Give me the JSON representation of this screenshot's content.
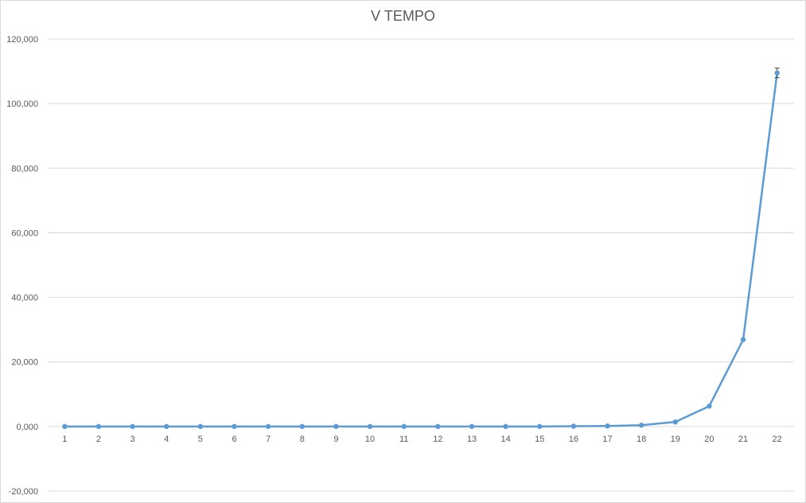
{
  "chart_data": {
    "type": "line",
    "title": "V TEMPO",
    "xlabel": "",
    "ylabel": "",
    "categories": [
      "1",
      "2",
      "3",
      "4",
      "5",
      "6",
      "7",
      "8",
      "9",
      "10",
      "11",
      "12",
      "13",
      "14",
      "15",
      "16",
      "17",
      "18",
      "19",
      "20",
      "21",
      "22"
    ],
    "series": [
      {
        "values": [
          0,
          0,
          0,
          0,
          0,
          0,
          0,
          0,
          0,
          0,
          0,
          0,
          0,
          0,
          0,
          100,
          150,
          400,
          1400,
          6300,
          26900,
          109500
        ],
        "color": "#5b9bd5",
        "error_bar_last": 1500
      }
    ],
    "ylim": [
      -20000,
      120000
    ],
    "yticks": [
      -20000,
      0,
      20000,
      40000,
      60000,
      80000,
      100000,
      120000
    ],
    "ytick_labels": [
      "-20,000",
      "0,000",
      "20,000",
      "40,000",
      "60,000",
      "80,000",
      "100,000",
      "120,000"
    ],
    "grid": true,
    "legend": "none"
  },
  "colors": {
    "line": "#5b9bd5",
    "grid": "#d9d9d9",
    "axis_text": "#595959",
    "title_text": "#595959"
  }
}
